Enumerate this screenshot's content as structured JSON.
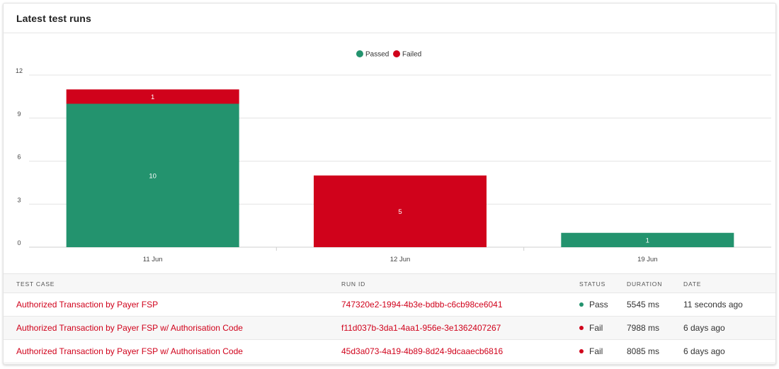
{
  "card": {
    "title": "Latest test runs"
  },
  "colors": {
    "passed": "#23936e",
    "failed": "#d0021b",
    "link": "#d0021b"
  },
  "chart_data": {
    "type": "bar",
    "stacked": true,
    "categories": [
      "11 Jun",
      "12 Jun",
      "19 Jun"
    ],
    "series": [
      {
        "name": "Passed",
        "values": [
          10,
          0,
          1
        ]
      },
      {
        "name": "Failed",
        "values": [
          1,
          5,
          0
        ]
      }
    ],
    "data_labels": [
      {
        "series": "Passed",
        "values": [
          "10",
          "",
          "1"
        ]
      },
      {
        "series": "Failed",
        "values": [
          "1",
          "5",
          ""
        ]
      }
    ],
    "y_ticks": [
      "0",
      "3",
      "6",
      "9",
      "12"
    ],
    "ylim": [
      0,
      12
    ],
    "grid": true,
    "legend_placement": "top-center"
  },
  "table": {
    "headers": {
      "case": "TEST CASE",
      "run": "RUN ID",
      "status": "STATUS",
      "duration": "DURATION",
      "date": "DATE"
    },
    "rows": [
      {
        "case": "Authorized Transaction by Payer FSP",
        "run_id": "747320e2-1994-4b3e-bdbb-c6cb98ce6041",
        "status": "Pass",
        "status_color": "#23936e",
        "duration": "5545 ms",
        "date": "11 seconds ago"
      },
      {
        "case": "Authorized Transaction by Payer FSP w/ Authorisation Code",
        "run_id": "f11d037b-3da1-4aa1-956e-3e1362407267",
        "status": "Fail",
        "status_color": "#d0021b",
        "duration": "7988 ms",
        "date": "6 days ago"
      },
      {
        "case": "Authorized Transaction by Payer FSP w/ Authorisation Code",
        "run_id": "45d3a073-4a19-4b89-8d24-9dcaaecb6816",
        "status": "Fail",
        "status_color": "#d0021b",
        "duration": "8085 ms",
        "date": "6 days ago"
      }
    ]
  }
}
